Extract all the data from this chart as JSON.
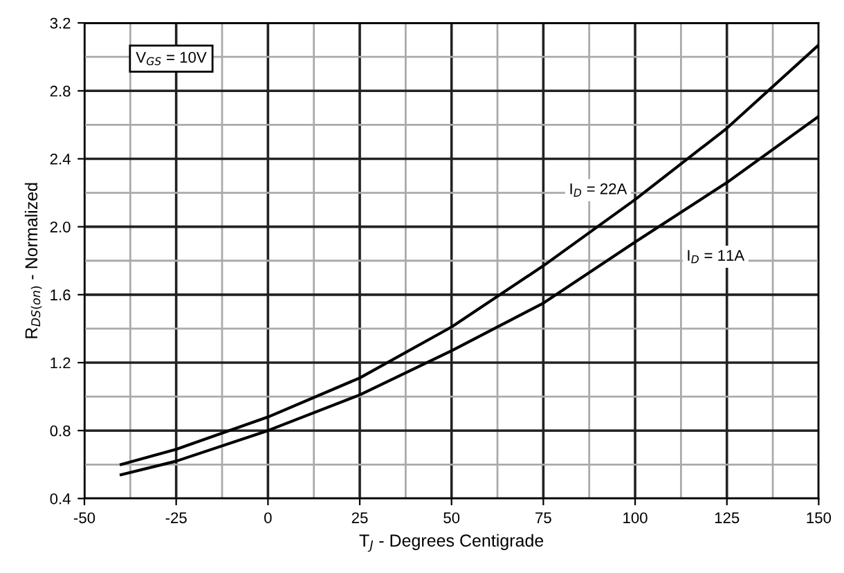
{
  "chart_data": {
    "type": "line",
    "xlabel": "T$_{J}$ - Degrees Centigrade",
    "ylabel": "R$_{DS(on)}$ - Normalized",
    "x": [
      -40,
      -25,
      0,
      25,
      50,
      75,
      100,
      125,
      150
    ],
    "series": [
      {
        "name": "I$_{D}$ = 22A",
        "color": "#000000",
        "values": [
          0.6,
          0.69,
          0.88,
          1.11,
          1.41,
          1.77,
          2.16,
          2.58,
          3.07
        ]
      },
      {
        "name": "I$_{D}$ = 11A",
        "color": "#000000",
        "values": [
          0.54,
          0.62,
          0.8,
          1.01,
          1.27,
          1.55,
          1.91,
          2.26,
          2.65
        ]
      }
    ],
    "annotations": [
      "V$_{GS}$ = 10V"
    ],
    "xlim": [
      -50,
      150
    ],
    "xticks": [
      -50,
      -25,
      0,
      25,
      50,
      75,
      100,
      125,
      150
    ],
    "ylim": [
      0.4,
      3.2
    ],
    "yticks": [
      0.4,
      0.8,
      1.2,
      1.6,
      {
        "value": 2.0,
        "label": "2.0"
      },
      2.4,
      2.8,
      3.2
    ],
    "grid": true,
    "legend": false,
    "marker": "none",
    "line_style": "solid"
  }
}
